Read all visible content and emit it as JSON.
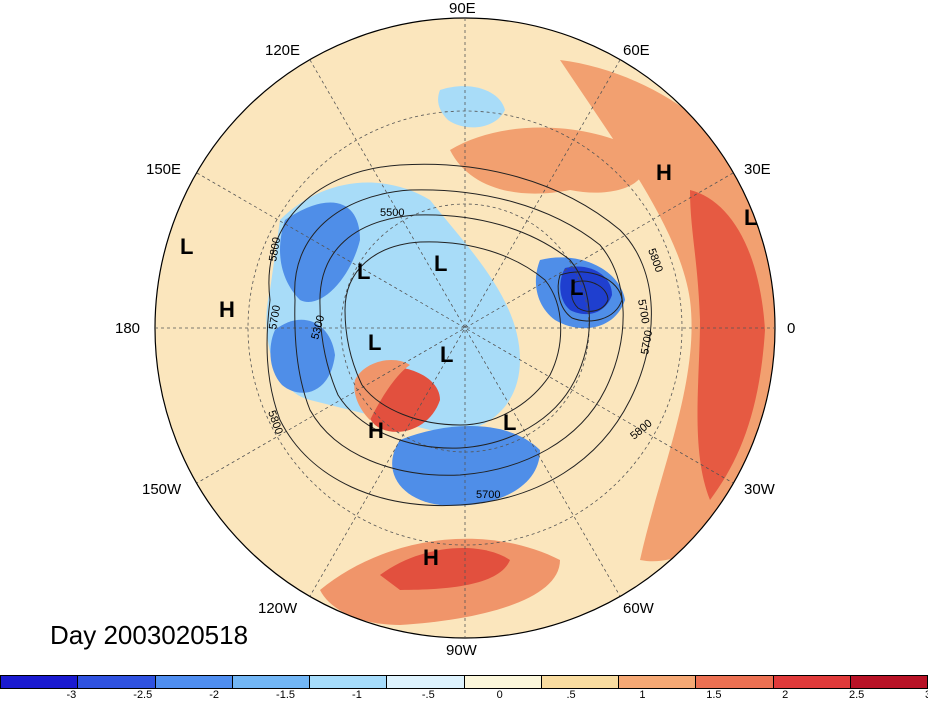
{
  "map": {
    "day_label": "Day 2003020518",
    "lon_labels": [
      "90E",
      "60E",
      "30E",
      "0",
      "30W",
      "60W",
      "90W",
      "120W",
      "150W",
      "180",
      "150E",
      "120E"
    ],
    "contour_labels": [
      "5500",
      "5800",
      "5700",
      "5300",
      "5800",
      "5800",
      "5700",
      "5700",
      "5800",
      "5700"
    ],
    "centers": [
      {
        "type": "H",
        "name": "h-north-africa"
      },
      {
        "type": "L",
        "name": "l-africa-east"
      },
      {
        "type": "L",
        "name": "l-pacific-west"
      },
      {
        "type": "H",
        "name": "h-pacific"
      },
      {
        "type": "L",
        "name": "l-siberia"
      },
      {
        "type": "L",
        "name": "l-arctic"
      },
      {
        "type": "L",
        "name": "l-iceland"
      },
      {
        "type": "L",
        "name": "l-bering"
      },
      {
        "type": "L",
        "name": "l-canada"
      },
      {
        "type": "H",
        "name": "h-alaska"
      },
      {
        "type": "L",
        "name": "l-hudson"
      },
      {
        "type": "H",
        "name": "h-mexico"
      }
    ]
  },
  "colorbar": {
    "colors": [
      "#1a1ad0",
      "#2f52e0",
      "#4f8ef0",
      "#72b6f5",
      "#a6dcfb",
      "#ddf2fd",
      "#fbf6da",
      "#f9dca0",
      "#f5a874",
      "#ec7052",
      "#e03a3a",
      "#b81226"
    ],
    "ticks": [
      "-3",
      "-2.5",
      "-2",
      "-1.5",
      "-1",
      "-.5",
      "0",
      ".5",
      "1",
      "1.5",
      "2",
      "2.5",
      "3"
    ]
  },
  "palette": {
    "anom_warm": "#f0a070",
    "anom_hot": "#e2503e",
    "anom_mild": "#f9dcaa",
    "anom_pale": "#fbefd0",
    "anom_cool": "#a8dcf8",
    "anom_cold": "#4f8ee8",
    "anom_deep": "#1f3fcf"
  }
}
